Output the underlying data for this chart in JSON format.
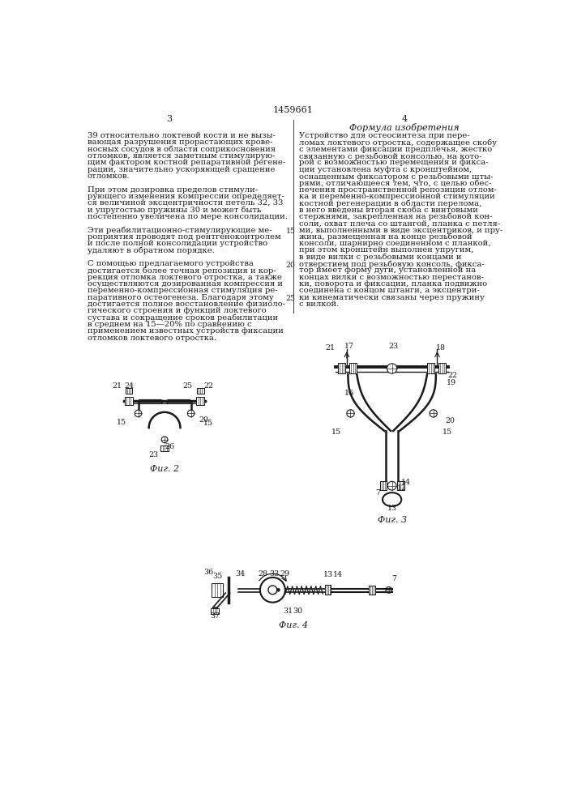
{
  "page_number_center": "1459661",
  "col_left_num": "3",
  "col_right_num": "4",
  "col_right_title": "Формула изобретения",
  "bg_color": "#ffffff",
  "text_color": "#1a1a1a",
  "line_color": "#1a1a1a",
  "font_size_main": 7.2,
  "font_size_label": 6.8,
  "font_size_header": 8.0,
  "font_size_fig": 8.0,
  "left_text_lines": [
    "39 относительно локтевой кости и не вызы-",
    "вающая разрушения прорастающих крове-",
    "носных сосудов в области соприкосновения",
    "отломков, является заметным стимулирую-",
    "щим фактором костной репаративной регене-",
    "рации, значительно ускоряющей сращение",
    "отломков.",
    "",
    "При этом дозировка пределов стимули-",
    "рующего изменения компрессии определяет-",
    "ся величиной эксцентричности петель 32, 33",
    "и упругостью пружины 30 и может быть",
    "постепенно увеличена по мере консолидации.",
    "",
    "Эти реабилитационно-стимулирующие ме-",
    "роприятия проводят под рентгеноконтролем",
    "и после полной консолидации устройство",
    "удаляют в обратном порядке.",
    "",
    "С помощью предлагаемого устройства",
    "достигается более точная репозиция и кор-",
    "рекция отломка локтевого отростка, а также",
    "осуществляются дозированная компрессия и",
    "переменно-компрессионная стимуляция ре-",
    "паративного остеогенеза. Благодаря этому",
    "достигается полное восстановление физиоло-",
    "гического строения и функций локтевого",
    "сустава и сокращение сроков реабилитации",
    "в среднем на 15—20% по сравнению с",
    "применением известных устройств фиксации",
    "отломков локтевого отростка."
  ],
  "right_text_lines": [
    "Устройство для остеосинтеза при пере-",
    "ломах локтевого отростка, содержащее скобу",
    "с элементами фиксации предплечья, жестко",
    "связанную с резьбовой консолью, на кото-",
    "рой с возможностью перемещения и фикса-",
    "ции установлена муфта с кронштейном,",
    "оснащенным фиксатором с резьбовыми шты-",
    "рями, отличающееся тем, что, с целью обес-",
    "печения пространственной репозиции отлом-",
    "ка и переменно-компрессионной стимуляции",
    "костной регенерации в области перелома,",
    "в него введены вторая скоба с винтовыми",
    "стержнями, закрепленная на резьбовой кон-",
    "соли, охват плеча со штангой, планка с петля-",
    "ми, выполненными в виде эксцентриков, и пру-",
    "жина, размещенная на конце резьбовой",
    "консоли, шарнирно соединенном с планкой,",
    "при этом кронштейн выполнен упругим,",
    "в виде вилки с резьбовыми концами и",
    "отверстием под резьбовую консоль, фикса-",
    "тор имеет форму дуги, установленной на",
    "концах вилки с возможностью перестанов-",
    "ки, поворота и фиксации, планка подвижно",
    "соединена с концом штанги, а эксцентри-",
    "ки кинематически связаны через пружину",
    "с вилкой."
  ],
  "line_number_rows": [
    14,
    19,
    24
  ],
  "line_number_vals": [
    "15",
    "20",
    "25"
  ]
}
